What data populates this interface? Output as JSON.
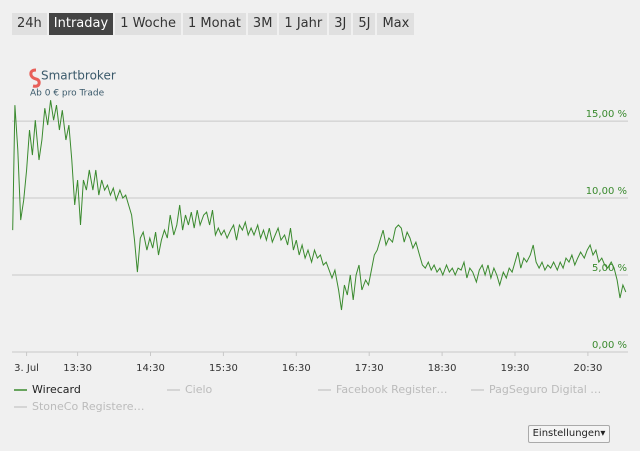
{
  "tabs": [
    "24h",
    "Intraday",
    "1 Woche",
    "1 Monat",
    "3M",
    "1 Jahr",
    "3J",
    "5J",
    "Max"
  ],
  "active_tab": 1,
  "branding": {
    "name": "Smartbroker",
    "tagline": "Ab 0 € pro Trade"
  },
  "settings_button": "Einstellungen▾",
  "chart_data": {
    "type": "line",
    "x": [
      12.61,
      12.64,
      12.68,
      12.72,
      12.76,
      12.8,
      12.84,
      12.88,
      12.92,
      12.97,
      13.01,
      13.05,
      13.09,
      13.13,
      13.17,
      13.21,
      13.25,
      13.29,
      13.34,
      13.38,
      13.42,
      13.46,
      13.5,
      13.54,
      13.58,
      13.62,
      13.66,
      13.71,
      13.75,
      13.79,
      13.83,
      13.87,
      13.91,
      13.95,
      13.99,
      14.03,
      14.08,
      14.12,
      14.16,
      14.2,
      14.24,
      14.28,
      14.32,
      14.36,
      14.4,
      14.45,
      14.49,
      14.53,
      14.57,
      14.61,
      14.65,
      14.69,
      14.73,
      14.77,
      14.82,
      14.86,
      14.9,
      14.94,
      14.98,
      15.02,
      15.06,
      15.1,
      15.14,
      15.18,
      15.23,
      15.27,
      15.31,
      15.35,
      15.39,
      15.43,
      15.47,
      15.51,
      15.55,
      15.6,
      15.64,
      15.68,
      15.72,
      15.76,
      15.8,
      15.84,
      15.88,
      15.92,
      15.97,
      16.01,
      16.05,
      16.09,
      16.13,
      16.17,
      16.21,
      16.25,
      16.29,
      16.34,
      16.38,
      16.42,
      16.46,
      16.5,
      16.54,
      16.58,
      16.62,
      16.66,
      16.71,
      16.75,
      16.79,
      16.83,
      16.87,
      16.91,
      16.95,
      16.99,
      17.03,
      17.08,
      17.12,
      17.16,
      17.2,
      17.24,
      17.28,
      17.32,
      17.36,
      17.4,
      17.45,
      17.49,
      17.53,
      17.57,
      17.61,
      17.65,
      17.69,
      17.73,
      17.77,
      17.82,
      17.86,
      17.9,
      17.94,
      17.98,
      18.02,
      18.06,
      18.1,
      18.14,
      18.19,
      18.23,
      18.27,
      18.31,
      18.35,
      18.39,
      18.43,
      18.47,
      18.51,
      18.56,
      18.6,
      18.64,
      18.68,
      18.72,
      18.76,
      18.8,
      18.84,
      18.88,
      18.92,
      18.97,
      19.01,
      19.05,
      19.09,
      19.13,
      19.17,
      19.21,
      19.25,
      19.29,
      19.34,
      19.38,
      19.42,
      19.46,
      19.5,
      19.54,
      19.58,
      19.62,
      19.66,
      19.71,
      19.75,
      19.79,
      19.83,
      19.87,
      19.91,
      19.95,
      19.99,
      20.03,
      20.08,
      20.12,
      20.16,
      20.2,
      20.24,
      20.28,
      20.32,
      20.36,
      20.4,
      20.45,
      20.49,
      20.53,
      20.57,
      20.61,
      20.65,
      20.69,
      20.73,
      20.77,
      20.82,
      20.86,
      20.9,
      20.94,
      20.98,
      21.02
    ],
    "series": [
      {
        "name": "Wirecard",
        "color": "#3a8a2e",
        "values": [
          7.92,
          16.04,
          13.12,
          8.57,
          9.87,
          11.82,
          14.42,
          12.79,
          15.06,
          12.47,
          13.77,
          15.84,
          14.74,
          16.36,
          15.06,
          16.04,
          14.42,
          15.71,
          13.77,
          14.74,
          12.47,
          9.55,
          11.17,
          8.25,
          11.17,
          10.52,
          11.82,
          10.52,
          11.82,
          10.19,
          11.17,
          10.52,
          10.84,
          10.19,
          10.65,
          9.87,
          10.52,
          10.0,
          10.19,
          9.55,
          8.9,
          7.27,
          5.19,
          7.4,
          7.79,
          6.62,
          7.4,
          6.75,
          7.79,
          6.3,
          7.27,
          7.92,
          7.4,
          8.9,
          7.6,
          8.25,
          9.55,
          7.92,
          8.9,
          8.25,
          9.09,
          8.05,
          9.22,
          8.25,
          8.9,
          9.09,
          8.25,
          9.22,
          7.6,
          8.05,
          7.6,
          7.92,
          7.4,
          7.92,
          8.25,
          7.27,
          8.25,
          7.92,
          8.44,
          7.6,
          8.05,
          7.6,
          8.25,
          7.4,
          7.92,
          7.27,
          8.05,
          7.14,
          7.6,
          8.05,
          7.27,
          7.6,
          6.95,
          8.05,
          6.62,
          7.27,
          6.3,
          6.95,
          6.1,
          6.62,
          5.84,
          6.62,
          6.1,
          6.3,
          5.65,
          5.84,
          5.32,
          4.81,
          5.32,
          4.03,
          2.73,
          4.35,
          3.7,
          5.0,
          3.38,
          5.0,
          5.65,
          4.03,
          4.68,
          4.35,
          5.32,
          6.3,
          6.62,
          7.27,
          7.92,
          6.95,
          7.4,
          7.14,
          8.05,
          8.25,
          8.05,
          7.14,
          7.79,
          7.4,
          6.75,
          7.14,
          6.3,
          5.65,
          5.45,
          5.84,
          5.32,
          5.65,
          5.19,
          5.45,
          5.0,
          5.65,
          5.19,
          5.45,
          5.0,
          5.45,
          5.32,
          5.84,
          4.81,
          5.45,
          5.19,
          4.55,
          5.32,
          5.65,
          5.0,
          5.65,
          4.81,
          5.45,
          5.0,
          4.35,
          5.19,
          4.81,
          5.45,
          5.19,
          5.84,
          6.49,
          5.45,
          6.1,
          5.84,
          6.3,
          6.95,
          5.84,
          5.45,
          5.84,
          5.32,
          5.65,
          5.45,
          5.84,
          5.32,
          5.84,
          5.45,
          6.1,
          5.84,
          6.3,
          5.65,
          6.1,
          6.49,
          6.1,
          6.62,
          6.95,
          6.3,
          6.62,
          5.84,
          6.1,
          5.65,
          5.45,
          5.84,
          5.45,
          4.68,
          3.51,
          4.35,
          3.9
        ]
      }
    ],
    "inactive_series": [
      "Cielo",
      "Facebook Register…",
      "PagSeguro Digital …",
      "StoneCo Registere…"
    ],
    "xlim": [
      12.6,
      21.05
    ],
    "xticks": [
      {
        "value": 12.8,
        "label": "3. Jul"
      },
      {
        "value": 13.5,
        "label": "13:30"
      },
      {
        "value": 14.5,
        "label": "14:30"
      },
      {
        "value": 15.5,
        "label": "15:30"
      },
      {
        "value": 16.5,
        "label": "16:30"
      },
      {
        "value": 17.5,
        "label": "17:30"
      },
      {
        "value": 18.5,
        "label": "18:30"
      },
      {
        "value": 19.5,
        "label": "19:30"
      },
      {
        "value": 20.5,
        "label": "20:30"
      }
    ],
    "ylim": [
      0,
      16.5
    ],
    "yticks": [
      {
        "value": 0,
        "label": "0,00 %"
      },
      {
        "value": 5,
        "label": "5,00 %"
      },
      {
        "value": 10,
        "label": "10,00 %"
      },
      {
        "value": 15,
        "label": "15,00 %"
      }
    ],
    "grid": true
  }
}
